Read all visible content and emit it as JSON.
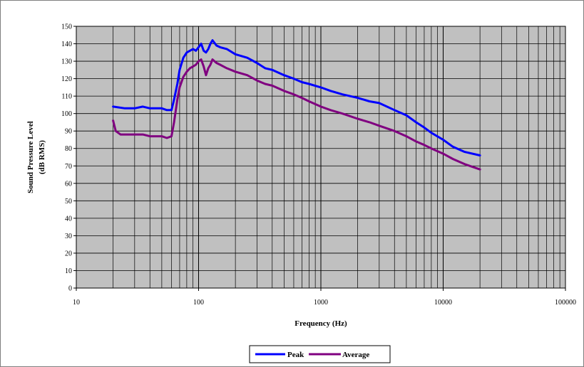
{
  "chart_data": {
    "type": "line",
    "title": "",
    "xlabel": "Frequency (Hz)",
    "ylabel": [
      "Sound Pressure Level",
      "(dB RMS)"
    ],
    "x_scale": "log",
    "xlim": [
      10,
      100000
    ],
    "ylim": [
      0,
      150
    ],
    "x_ticks": [
      10,
      100,
      1000,
      10000,
      100000
    ],
    "x_tick_labels": [
      "10",
      "100",
      "1000",
      "10000",
      "100000"
    ],
    "y_ticks": [
      0,
      10,
      20,
      30,
      40,
      50,
      60,
      70,
      80,
      90,
      100,
      110,
      120,
      130,
      140,
      150
    ],
    "grid": true,
    "legend_position": "bottom",
    "plot_background": "#c0c0c0",
    "series": [
      {
        "name": "Peak",
        "color": "#0000ff",
        "x": [
          20,
          25,
          30,
          35,
          40,
          45,
          50,
          55,
          60,
          63,
          67,
          70,
          75,
          80,
          85,
          90,
          95,
          100,
          105,
          110,
          115,
          120,
          125,
          130,
          140,
          150,
          170,
          200,
          250,
          300,
          350,
          400,
          500,
          600,
          700,
          800,
          1000,
          1200,
          1500,
          2000,
          2500,
          3000,
          4000,
          5000,
          6000,
          7000,
          8000,
          10000,
          12000,
          15000,
          20000
        ],
        "y": [
          104,
          103,
          103,
          104,
          103,
          103,
          103,
          102,
          102,
          108,
          117,
          125,
          132,
          135,
          136,
          137,
          136,
          138,
          140,
          136,
          135,
          137,
          140,
          142,
          139,
          138,
          137,
          134,
          132,
          129,
          126,
          125,
          122,
          120,
          118,
          117,
          115,
          113,
          111,
          109,
          107,
          106,
          102,
          99,
          95,
          92,
          89,
          85,
          81,
          78,
          76
        ]
      },
      {
        "name": "Average",
        "color": "#800080",
        "x": [
          20,
          21,
          23,
          25,
          30,
          35,
          40,
          45,
          50,
          55,
          60,
          63,
          67,
          70,
          75,
          80,
          85,
          90,
          95,
          100,
          105,
          110,
          115,
          120,
          125,
          130,
          140,
          150,
          170,
          200,
          250,
          300,
          350,
          400,
          500,
          600,
          700,
          800,
          1000,
          1200,
          1500,
          2000,
          2500,
          3000,
          4000,
          5000,
          6000,
          7000,
          8000,
          10000,
          12000,
          15000,
          20000
        ],
        "y": [
          96,
          90,
          88,
          88,
          88,
          88,
          87,
          87,
          87,
          86,
          87,
          95,
          108,
          115,
          121,
          124,
          126,
          127,
          128,
          130,
          131,
          127,
          122,
          126,
          128,
          131,
          129,
          128,
          126,
          124,
          122,
          119,
          117,
          116,
          113,
          111,
          109,
          107,
          104,
          102,
          100,
          97,
          95,
          93,
          90,
          87,
          84,
          82,
          80,
          77,
          74,
          71,
          68
        ]
      }
    ]
  }
}
